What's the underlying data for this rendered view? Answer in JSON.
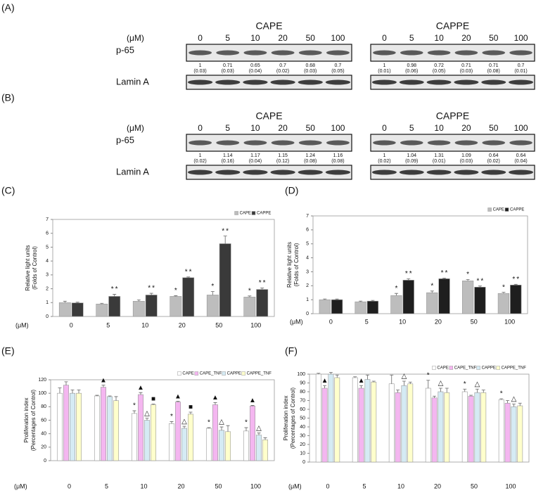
{
  "blots": [
    {
      "label": "(A)",
      "unit": "(μM)",
      "rows": [
        "p-65",
        "Lamin A"
      ],
      "groups": [
        {
          "name": "CAPE",
          "doses": [
            "0",
            "5",
            "10",
            "20",
            "50",
            "100"
          ],
          "values": [
            "1",
            "0.71",
            "0.65",
            "0.7",
            "0.68",
            "0.7"
          ],
          "sd": [
            "(0.03)",
            "(0.03)",
            "(0.04)",
            "(0.02)",
            "(0.03)",
            "(0.05)"
          ]
        },
        {
          "name": "CAPPE",
          "doses": [
            "0",
            "5",
            "10",
            "20",
            "50",
            "100"
          ],
          "values": [
            "1",
            "0.98",
            "0.72",
            "0.71",
            "0.71",
            "0.7"
          ],
          "sd": [
            "(0.01)",
            "(0.06)",
            "(0.05)",
            "(0.03)",
            "(0.08)",
            "(0.01)"
          ]
        }
      ]
    },
    {
      "label": "(B)",
      "unit": "(μM)",
      "rows": [
        "p-65",
        "Lamin A"
      ],
      "groups": [
        {
          "name": "CAPE",
          "doses": [
            "0",
            "5",
            "10",
            "20",
            "50",
            "100"
          ],
          "values": [
            "1",
            "1.14",
            "1.17",
            "1.15",
            "1.24",
            "1.16"
          ],
          "sd": [
            "(0.02)",
            "(0.16)",
            "(0.04)",
            "(0.12)",
            "(0.08)",
            "(0.08)"
          ]
        },
        {
          "name": "CAPPE",
          "doses": [
            "0",
            "5",
            "10",
            "20",
            "50",
            "100"
          ],
          "values": [
            "1",
            "1.04",
            "1.31",
            "1.09",
            "0.64",
            "0.64"
          ],
          "sd": [
            "(0.02)",
            "(0.09)",
            "(0.01)",
            "(0.03)",
            "(0.02)",
            "(0.04)"
          ]
        }
      ]
    }
  ],
  "chart_data": [
    {
      "type": "bar",
      "panel": "(C)",
      "xlabel": "(μM)",
      "ylabel": [
        "Relative light units",
        "(Folds of Control)"
      ],
      "categories": [
        "0",
        "5",
        "10",
        "20",
        "50",
        "100"
      ],
      "ylim": [
        0,
        7
      ],
      "yticks": [
        0,
        1,
        2,
        3,
        4,
        5,
        6,
        7
      ],
      "legend": "upper right",
      "series": [
        {
          "name": "CAPE",
          "color": "#bdbdbd",
          "values": [
            1.0,
            0.9,
            1.1,
            1.45,
            1.55,
            1.4
          ],
          "errors": [
            0.1,
            0.05,
            0.1,
            0.05,
            0.25,
            0.08
          ],
          "markers": [
            null,
            null,
            null,
            "*",
            "*",
            "*"
          ]
        },
        {
          "name": "CAPPE",
          "color": "#3a3a3a",
          "values": [
            0.98,
            1.45,
            1.55,
            2.8,
            5.25,
            1.95
          ],
          "errors": [
            0.05,
            0.15,
            0.12,
            0.05,
            0.55,
            0.1
          ],
          "markers": [
            null,
            "**",
            "**",
            "**",
            "**",
            "**"
          ]
        }
      ]
    },
    {
      "type": "bar",
      "panel": "(D)",
      "xlabel": "(μM)",
      "ylabel": [
        "Relative light units",
        "(Folds of Control)"
      ],
      "categories": [
        "0",
        "5",
        "10",
        "20",
        "50",
        "100"
      ],
      "ylim": [
        0,
        7
      ],
      "yticks": [
        0,
        1,
        2,
        3,
        4,
        5,
        6,
        7
      ],
      "legend": "upper right",
      "series": [
        {
          "name": "CAPE",
          "color": "#bdbdbd",
          "values": [
            1.0,
            0.85,
            1.3,
            1.5,
            2.35,
            1.45
          ],
          "errors": [
            0.05,
            0.05,
            0.15,
            0.12,
            0.1,
            0.08
          ],
          "markers": [
            null,
            null,
            "*",
            "*",
            "*",
            "*"
          ]
        },
        {
          "name": "CAPPE",
          "color": "#1e1e1e",
          "values": [
            1.0,
            0.9,
            2.4,
            2.5,
            1.9,
            2.05
          ],
          "errors": [
            0.05,
            0.05,
            0.1,
            0.05,
            0.08,
            0.05
          ],
          "markers": [
            null,
            null,
            "**",
            "**",
            "**",
            "**"
          ]
        }
      ]
    },
    {
      "type": "bar",
      "panel": "(E)",
      "xlabel": "(μM)",
      "ylabel": [
        "Proliferation index",
        "(Percentages of Control)"
      ],
      "categories": [
        "0",
        "5",
        "10",
        "20",
        "50",
        "100"
      ],
      "ylim": [
        0,
        120
      ],
      "yticks": [
        0,
        20,
        40,
        60,
        80,
        100,
        120
      ],
      "legend": "upper right",
      "series": [
        {
          "name": "CAPE",
          "color": "#ffffff",
          "values": [
            100,
            96,
            70,
            55,
            48,
            44
          ],
          "errors": [
            8,
            1,
            4,
            3,
            1,
            5
          ],
          "markers": [
            null,
            null,
            "*",
            "*",
            "*",
            "*"
          ]
        },
        {
          "name": "CAPE_TNF",
          "color": "#f4b6f0",
          "values": [
            112,
            109,
            98,
            87,
            83,
            81
          ],
          "errors": [
            5,
            3,
            3,
            1,
            3,
            1
          ],
          "markers": [
            null,
            "▲",
            "▲",
            "▲",
            "▲",
            "▲"
          ]
        },
        {
          "name": "CAPPE",
          "color": "#d5ebf4",
          "values": [
            100,
            95,
            60,
            48,
            45,
            38
          ],
          "errors": [
            5,
            1,
            3,
            3,
            5,
            3
          ],
          "markers": [
            null,
            null,
            "△",
            "△",
            "△",
            "△"
          ]
        },
        {
          "name": "CAPPE_TNF",
          "color": "#ffffcc",
          "values": [
            100,
            89,
            83,
            69,
            43,
            31
          ],
          "errors": [
            5,
            6,
            1,
            3,
            9,
            3
          ],
          "markers": [
            null,
            null,
            "■",
            "■",
            null,
            null
          ]
        }
      ]
    },
    {
      "type": "bar",
      "panel": "(F)",
      "xlabel": "(μM)",
      "ylabel": [
        "Proliferation index",
        "(Percentages of Control)"
      ],
      "categories": [
        "0",
        "5",
        "10",
        "20",
        "50",
        "100"
      ],
      "ylim": [
        0,
        100
      ],
      "yticks": [
        0,
        10,
        20,
        30,
        40,
        50,
        60,
        70,
        80,
        90,
        100
      ],
      "legend": "upper right",
      "series": [
        {
          "name": "CAPE",
          "color": "#ffffff",
          "values": [
            100,
            96,
            89,
            84,
            80,
            71
          ],
          "errors": [
            1,
            1,
            10,
            9,
            3,
            1
          ],
          "markers": [
            null,
            null,
            null,
            "*",
            "*",
            "*"
          ]
        },
        {
          "name": "CAPE_TNF",
          "color": "#f4b6f0",
          "values": [
            84,
            84,
            79,
            73,
            75,
            67
          ],
          "errors": [
            3,
            3,
            3,
            2,
            1,
            3
          ],
          "markers": [
            "▲",
            "▲",
            null,
            null,
            null,
            null
          ]
        },
        {
          "name": "CAPPE",
          "color": "#d5ebf4",
          "values": [
            100,
            94,
            87,
            80,
            79,
            63
          ],
          "errors": [
            2,
            5,
            5,
            4,
            4,
            3
          ],
          "markers": [
            null,
            null,
            "△",
            "△",
            "△",
            "△"
          ]
        },
        {
          "name": "CAPPE_TNF",
          "color": "#ffffcc",
          "values": [
            96,
            91,
            89,
            79,
            79,
            64
          ],
          "errors": [
            3,
            1,
            2,
            5,
            3,
            3
          ],
          "markers": [
            null,
            null,
            null,
            null,
            null,
            null
          ]
        }
      ]
    }
  ]
}
